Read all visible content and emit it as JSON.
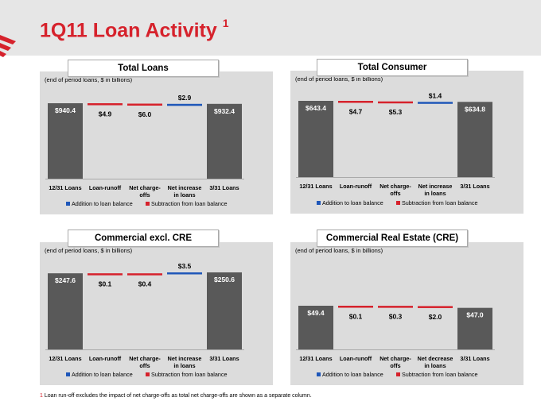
{
  "page": {
    "title": "1Q11 Loan Activity",
    "title_marker": "1"
  },
  "colors": {
    "title": "#d6222c",
    "total_bar": "#595959",
    "addition": "#1f57b9",
    "subtraction": "#d6222c",
    "panel_bg": "#dcdcdc"
  },
  "footnote": {
    "marker": "1",
    "text": "Loan run-off excludes the impact of net charge-offs as total net charge-offs are shown as a separate column."
  },
  "chart_data": [
    {
      "type": "bar",
      "style": "waterfall",
      "title": "Total Loans",
      "subtitle": "(end of period loans, $ in billions)",
      "ylim": [
        0,
        1000
      ],
      "steps": [
        {
          "category": "12/31 Loans",
          "kind": "total",
          "value": 940.4,
          "label": "$940.4"
        },
        {
          "category": "Loan-runoff",
          "kind": "subtraction",
          "value": 4.9,
          "label": "$4.9"
        },
        {
          "category": "Net charge-offs",
          "kind": "subtraction",
          "value": 6.0,
          "label": "$6.0"
        },
        {
          "category": "Net increase in loans",
          "kind": "addition",
          "value": 2.9,
          "label": "$2.9"
        },
        {
          "category": "3/31 Loans",
          "kind": "total",
          "value": 932.4,
          "label": "$932.4"
        }
      ],
      "legend": [
        "Addition to loan balance",
        "Subtraction from loan balance"
      ]
    },
    {
      "type": "bar",
      "style": "waterfall",
      "title": "Total Consumer",
      "subtitle": "(end of period loans, $ in billions)",
      "ylim": [
        0,
        700
      ],
      "steps": [
        {
          "category": "12/31 Loans",
          "kind": "total",
          "value": 643.4,
          "label": "$643.4"
        },
        {
          "category": "Loan-runoff",
          "kind": "subtraction",
          "value": 4.7,
          "label": "$4.7"
        },
        {
          "category": "Net charge-offs",
          "kind": "subtraction",
          "value": 5.3,
          "label": "$5.3"
        },
        {
          "category": "Net increase in loans",
          "kind": "addition",
          "value": 1.4,
          "label": "$1.4"
        },
        {
          "category": "3/31 Loans",
          "kind": "total",
          "value": 634.8,
          "label": "$634.8"
        }
      ],
      "legend": [
        "Addition to loan balance",
        "Subtraction from loan balance"
      ]
    },
    {
      "type": "bar",
      "style": "waterfall",
      "title": "Commercial excl. CRE",
      "subtitle": "(end of period loans, $ in billions)",
      "ylim": [
        0,
        270
      ],
      "steps": [
        {
          "category": "12/31 Loans",
          "kind": "total",
          "value": 247.6,
          "label": "$247.6"
        },
        {
          "category": "Loan-runoff",
          "kind": "subtraction",
          "value": 0.1,
          "label": "$0.1"
        },
        {
          "category": "Net charge-offs",
          "kind": "subtraction",
          "value": 0.4,
          "label": "$0.4"
        },
        {
          "category": "Net increase in loans",
          "kind": "addition",
          "value": 3.5,
          "label": "$3.5"
        },
        {
          "category": "3/31 Loans",
          "kind": "total",
          "value": 250.6,
          "label": "$250.6"
        }
      ],
      "legend": [
        "Addition to loan balance",
        "Subtraction from loan balance"
      ]
    },
    {
      "type": "bar",
      "style": "waterfall",
      "title": "Commercial Real Estate (CRE)",
      "subtitle": "(end of period loans, $ in billions)",
      "ylim": [
        0,
        100
      ],
      "steps": [
        {
          "category": "12/31 Loans",
          "kind": "total",
          "value": 49.4,
          "label": "$49.4"
        },
        {
          "category": "Loan-runoff",
          "kind": "subtraction",
          "value": 0.1,
          "label": "$0.1"
        },
        {
          "category": "Net charge-offs",
          "kind": "subtraction",
          "value": 0.3,
          "label": "$0.3"
        },
        {
          "category": "Net decrease in loans",
          "kind": "subtraction",
          "value": 2.0,
          "label": "$2.0"
        },
        {
          "category": "3/31 Loans",
          "kind": "total",
          "value": 47.0,
          "label": "$47.0"
        }
      ],
      "legend": [
        "Addition to loan balance",
        "Subtraction from loan balance"
      ]
    }
  ]
}
